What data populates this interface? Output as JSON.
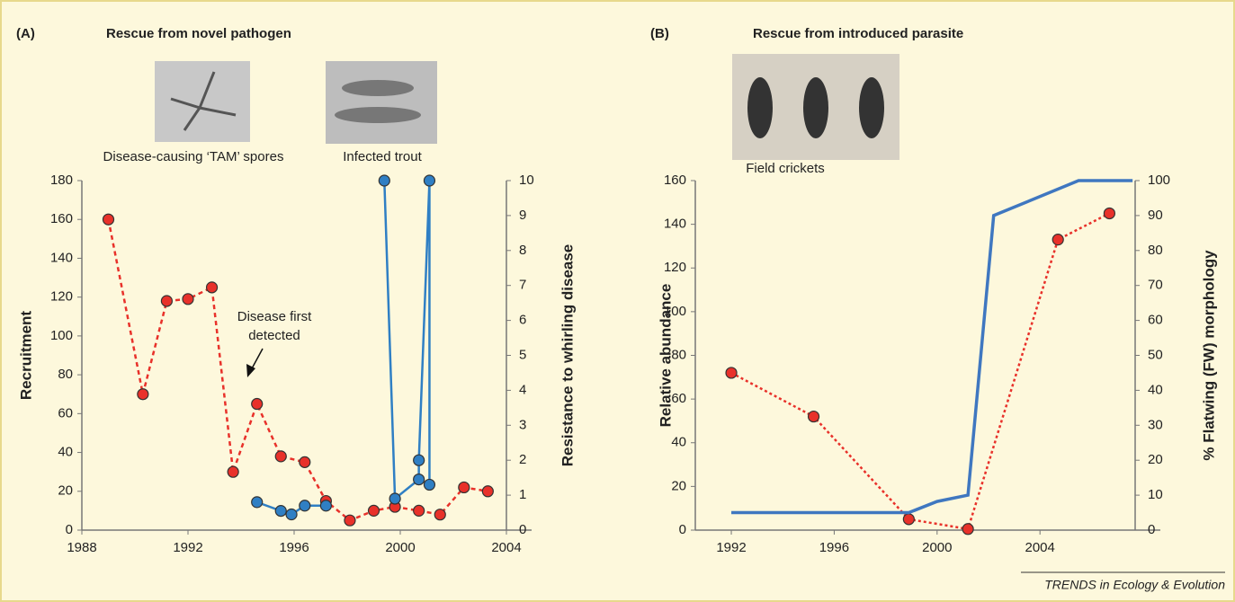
{
  "figure_credit": "TRENDS in Ecology & Evolution",
  "chart_data": [
    {
      "type": "line",
      "panel_label": "(A)",
      "title": "Rescue from novel pathogen",
      "image_captions": [
        "Disease-causing ‘TAM’ spores",
        "Infected trout"
      ],
      "ylabel": "Recruitment",
      "y2label": "Resistance to whirling disease",
      "annotation": [
        "Disease first",
        "detected"
      ],
      "xlim": [
        1988,
        2004
      ],
      "xticks": [
        1988,
        1992,
        1996,
        2000,
        2004
      ],
      "ylim": [
        0,
        180
      ],
      "yticks": [
        0,
        20,
        40,
        60,
        80,
        100,
        120,
        140,
        160,
        180
      ],
      "y2lim": [
        0,
        10
      ],
      "y2ticks": [
        0,
        1,
        2,
        3,
        4,
        5,
        6,
        7,
        8,
        9,
        10
      ],
      "series": [
        {
          "color": "#e8312a",
          "line_style": "dashed",
          "markers": true,
          "x": [
            1989.0,
            1990.3,
            1991.2,
            1992.0,
            1992.9,
            1993.7,
            1994.6,
            1995.5,
            1996.4,
            1997.2,
            1998.1,
            1999.0,
            1999.8,
            2000.7,
            2001.5,
            2002.4,
            2003.3
          ],
          "values": [
            160,
            70,
            118,
            119,
            125,
            30,
            65,
            38,
            35,
            15,
            5,
            10,
            12,
            10,
            8,
            22,
            20
          ]
        },
        {
          "color": "#2f7fc4",
          "line_style": "solid",
          "markers": true,
          "axis": "y2",
          "x": [
            1994.6,
            1995.5,
            1995.9,
            1996.4,
            1997.2,
            null,
            1999.4,
            1999.8,
            2000.7,
            2000.7,
            2001.1,
            2001.1
          ],
          "values": [
            0.8,
            0.55,
            0.45,
            0.7,
            0.7,
            null,
            10,
            0.9,
            1.45,
            2.0,
            10,
            1.3
          ]
        }
      ]
    },
    {
      "type": "line",
      "panel_label": "(B)",
      "title": "Rescue from introduced parasite",
      "image_captions": [
        "Field crickets"
      ],
      "ylabel": "Relative abundance",
      "y2label": "% Flatwing (FW) morphology",
      "xlim": [
        1990.6,
        2007.7
      ],
      "xticks": [
        1992,
        1996,
        2000,
        2004
      ],
      "ylim": [
        0,
        160
      ],
      "yticks": [
        0,
        20,
        40,
        60,
        80,
        100,
        120,
        140,
        160
      ],
      "y2lim": [
        0,
        100
      ],
      "y2ticks": [
        0,
        10,
        20,
        30,
        40,
        50,
        60,
        70,
        80,
        90,
        100
      ],
      "series": [
        {
          "color": "#e8312a",
          "line_style": "dotted",
          "markers": true,
          "x": [
            1992.0,
            1995.2,
            1998.9,
            2001.2,
            2004.7,
            2006.7
          ],
          "values": [
            72,
            52,
            5,
            0.5,
            133,
            145
          ]
        },
        {
          "color": "#3f77c0",
          "line_style": "solid",
          "markers": false,
          "axis": "y2",
          "x": [
            1992.0,
            1998.9,
            2000.0,
            2001.2,
            2002.2,
            2005.5,
            2007.6
          ],
          "values": [
            5,
            5,
            8.2,
            10,
            90,
            100,
            100
          ]
        }
      ]
    }
  ]
}
